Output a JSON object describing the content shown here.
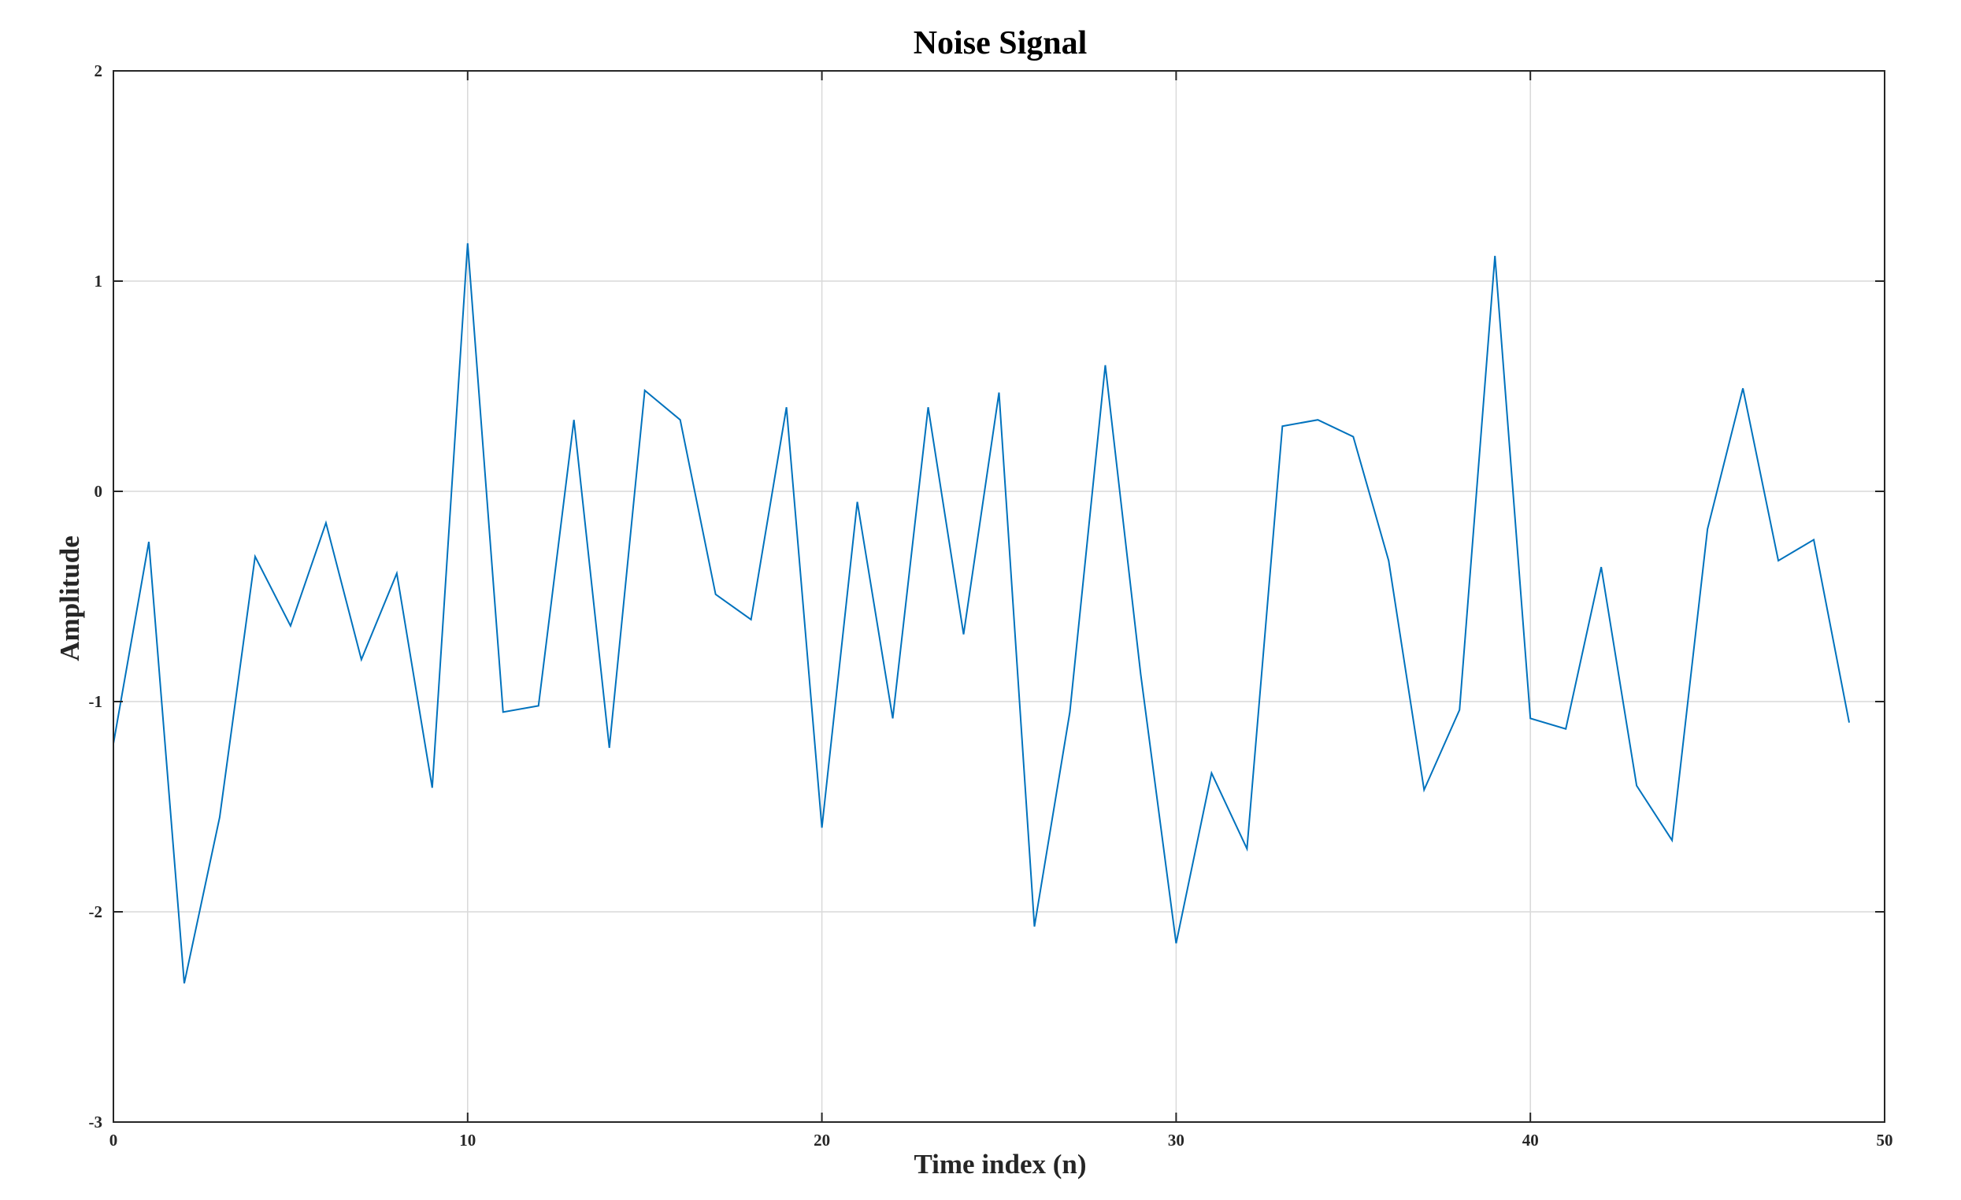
{
  "chart_data": {
    "type": "line",
    "title": "Noise Signal",
    "xlabel": "Time index (n)",
    "ylabel": "Amplitude",
    "xlim": [
      0,
      50
    ],
    "ylim": [
      -3,
      2
    ],
    "x_ticks": [
      0,
      10,
      20,
      30,
      40,
      50
    ],
    "x_tick_labels": [
      "0",
      "10",
      "20",
      "30",
      "40",
      "50"
    ],
    "y_ticks": [
      -3,
      -2,
      -1,
      0,
      1,
      2
    ],
    "y_tick_labels": [
      "-3",
      "-2",
      "-1",
      "0",
      "1",
      "2"
    ],
    "grid": true,
    "series": [
      {
        "color": "#0072bd",
        "x": [
          0,
          1,
          2,
          3,
          4,
          5,
          6,
          7,
          8,
          9,
          10,
          11,
          12,
          13,
          14,
          15,
          16,
          17,
          18,
          19,
          20,
          21,
          22,
          23,
          24,
          25,
          26,
          27,
          28,
          29,
          30,
          31,
          32,
          33,
          34,
          35,
          36,
          37,
          38,
          39,
          40,
          41,
          42,
          43,
          44,
          45,
          46,
          47,
          48,
          49
        ],
        "values": [
          -1.2,
          -0.24,
          -2.34,
          -1.55,
          -0.31,
          -0.64,
          -0.15,
          -0.8,
          -0.39,
          -1.41,
          1.18,
          -1.05,
          -1.02,
          0.34,
          -1.22,
          0.48,
          0.34,
          -0.49,
          -0.61,
          0.4,
          -1.6,
          -0.05,
          -1.08,
          0.4,
          -0.68,
          0.47,
          -2.07,
          -1.05,
          0.6,
          -0.87,
          -2.15,
          -1.34,
          -1.7,
          0.31,
          0.34,
          0.26,
          -0.33,
          -1.42,
          -1.04,
          1.12,
          -1.08,
          -1.13,
          -0.36,
          -1.4,
          -1.66,
          -0.18,
          0.49,
          -0.33,
          -0.23,
          -1.1
        ]
      }
    ]
  }
}
